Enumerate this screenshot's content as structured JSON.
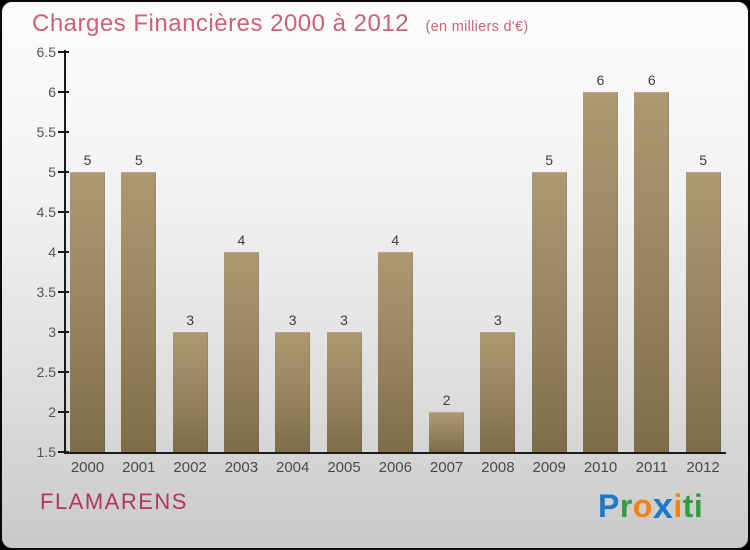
{
  "header": {
    "title": "Charges Financières 2000 à 2012",
    "subtitle": "(en milliers d'€)"
  },
  "chart_data": {
    "type": "bar",
    "title": "Charges Financières 2000 à 2012",
    "subtitle": "(en milliers d'€)",
    "categories": [
      "2000",
      "2001",
      "2002",
      "2003",
      "2004",
      "2005",
      "2006",
      "2007",
      "2008",
      "2009",
      "2010",
      "2011",
      "2012"
    ],
    "values": [
      5,
      5,
      3,
      4,
      3,
      3,
      4,
      2,
      3,
      5,
      6,
      6,
      5
    ],
    "xlabel": "",
    "ylabel": "",
    "ylim": [
      1.5,
      6.5
    ],
    "yticks": [
      1.5,
      2,
      2.5,
      3,
      3.5,
      4,
      4.5,
      5,
      5.5,
      6,
      6.5
    ],
    "ytick_labels": [
      "1.5",
      "2",
      "2.5",
      "3",
      "3.5",
      "4",
      "4.5",
      "5",
      "5.5",
      "6",
      "6.5"
    ],
    "grid": false,
    "legend_position": "none",
    "bar_color_top": "#ad9872",
    "bar_color_bottom": "#7d6d4a"
  },
  "footer": {
    "name": "FLAMARENS",
    "logo": {
      "word": "Proxiti",
      "letters": [
        {
          "char": "P",
          "color": "#1e78c8",
          "big": false
        },
        {
          "char": "r",
          "color": "#2f9e3f",
          "big": false
        },
        {
          "char": "o",
          "color": "#f5820a",
          "big": false
        },
        {
          "char": "x",
          "color": "#1e78c8",
          "big": true
        },
        {
          "char": "i",
          "color": "#f5820a",
          "big": false
        },
        {
          "char": "t",
          "color": "#2f9e3f",
          "big": false
        },
        {
          "char": "i",
          "color": "#2f9e3f",
          "big": false
        }
      ]
    }
  },
  "colors": {
    "title": "#cf6078",
    "footer_name": "#b73366",
    "axis": "#1a1a1a",
    "tick_label": "#555555",
    "year_label": "#4a4a4a",
    "value_label": "#3d3d3d"
  }
}
